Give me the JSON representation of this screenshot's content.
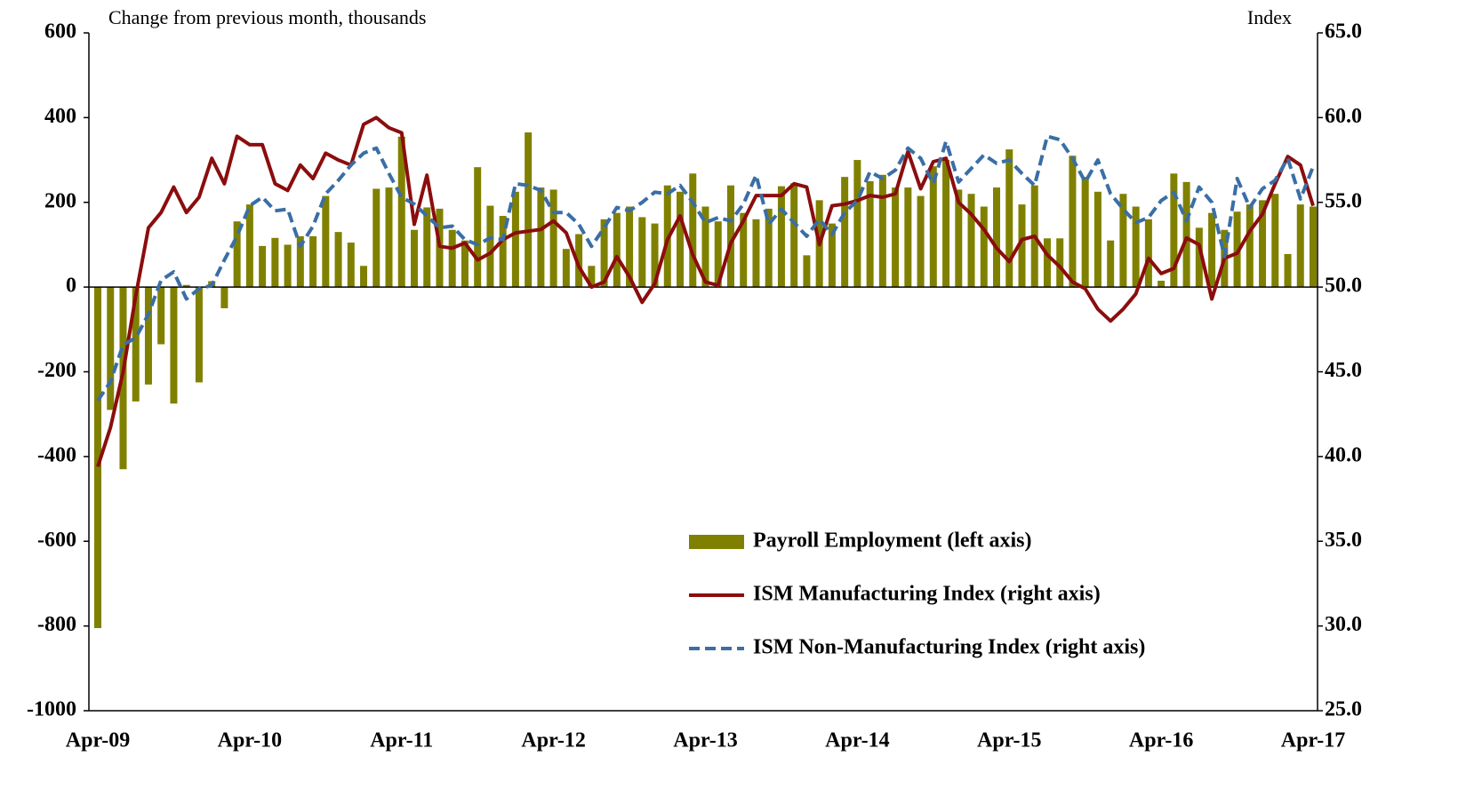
{
  "chart_data": {
    "type": "bar-line",
    "y_label": "Change from previous month, thousands",
    "y2_label": "Index",
    "categories": [
      "Apr-09",
      null,
      null,
      null,
      null,
      null,
      null,
      null,
      null,
      null,
      null,
      null,
      "Apr-10",
      null,
      null,
      null,
      null,
      null,
      null,
      null,
      null,
      null,
      null,
      null,
      "Apr-11",
      null,
      null,
      null,
      null,
      null,
      null,
      null,
      null,
      null,
      null,
      null,
      "Apr-12",
      null,
      null,
      null,
      null,
      null,
      null,
      null,
      null,
      null,
      null,
      null,
      "Apr-13",
      null,
      null,
      null,
      null,
      null,
      null,
      null,
      null,
      null,
      null,
      null,
      "Apr-14",
      null,
      null,
      null,
      null,
      null,
      null,
      null,
      null,
      null,
      null,
      null,
      "Apr-15",
      null,
      null,
      null,
      null,
      null,
      null,
      null,
      null,
      null,
      null,
      null,
      "Apr-16",
      null,
      null,
      null,
      null,
      null,
      null,
      null,
      null,
      null,
      null,
      null,
      "Apr-17"
    ],
    "series": [
      {
        "name": "Payroll Employment (left axis)",
        "kind": "bar",
        "color": "#808000",
        "values": [
          -805,
          -290,
          -430,
          -270,
          -230,
          -135,
          -275,
          5,
          -225,
          14,
          -50,
          155,
          195,
          97,
          116,
          100,
          120,
          120,
          215,
          130,
          105,
          50,
          232,
          235,
          355,
          135,
          188,
          185,
          135,
          110,
          283,
          192,
          168,
          225,
          365,
          235,
          230,
          90,
          125,
          50,
          160,
          175,
          190,
          165,
          150,
          240,
          225,
          268,
          190,
          155,
          240,
          175,
          160,
          185,
          238,
          245,
          75,
          205,
          150,
          260,
          300,
          250,
          265,
          235,
          235,
          215,
          285,
          300,
          230,
          220,
          190,
          235,
          325,
          195,
          240,
          115,
          115,
          310,
          260,
          225,
          110,
          220,
          190,
          160,
          15,
          268,
          248,
          140,
          175,
          135,
          178,
          195,
          205,
          220,
          78,
          195,
          190
        ]
      },
      {
        "name": "ISM Manufacturing Index (right axis)",
        "kind": "line",
        "axis": "y2",
        "color": "#8b0d0d",
        "dash": false,
        "values": [
          39.4,
          41.7,
          45.0,
          49.5,
          53.5,
          54.4,
          55.9,
          54.4,
          55.3,
          57.6,
          56.1,
          58.9,
          58.4,
          58.4,
          56.1,
          55.7,
          57.2,
          56.4,
          57.9,
          57.5,
          57.2,
          59.6,
          60.0,
          59.4,
          59.1,
          53.7,
          56.6,
          52.4,
          52.3,
          52.6,
          51.6,
          52.0,
          52.8,
          53.2,
          53.3,
          53.4,
          53.9,
          53.2,
          51.2,
          50.0,
          50.3,
          51.8,
          50.6,
          49.1,
          50.2,
          52.8,
          54.2,
          51.9,
          50.3,
          50.1,
          52.6,
          53.9,
          55.4,
          55.4,
          55.4,
          56.1,
          55.9,
          52.5,
          54.8,
          54.9,
          55.1,
          55.4,
          55.3,
          55.5,
          58.0,
          55.8,
          57.4,
          57.6,
          55.0,
          54.3,
          53.4,
          52.3,
          51.5,
          52.8,
          53.0,
          51.9,
          51.2,
          50.3,
          49.9,
          48.7,
          48.0,
          48.7,
          49.6,
          51.7,
          50.8,
          51.1,
          52.9,
          52.5,
          49.3,
          51.7,
          52.0,
          53.3,
          54.3,
          56.1,
          57.7,
          57.2,
          54.8
        ]
      },
      {
        "name": "ISM Non-Manufacturing Index (right axis)",
        "kind": "line",
        "axis": "y2",
        "color": "#3a6ea5",
        "dash": true,
        "values": [
          43.3,
          44.4,
          46.6,
          47.0,
          48.4,
          50.4,
          50.9,
          49.3,
          49.9,
          50.1,
          51.6,
          53.0,
          54.8,
          55.3,
          54.5,
          54.6,
          52.4,
          53.6,
          55.5,
          56.3,
          57.2,
          57.9,
          58.2,
          56.7,
          55.3,
          54.9,
          54.2,
          53.5,
          53.6,
          52.8,
          52.5,
          52.9,
          52.8,
          56.1,
          56.0,
          55.7,
          54.4,
          54.4,
          53.7,
          52.4,
          53.5,
          54.7,
          54.5,
          55.0,
          55.6,
          55.5,
          56.0,
          55.0,
          53.8,
          54.1,
          53.9,
          54.9,
          56.6,
          53.7,
          54.6,
          53.8,
          53.0,
          54.0,
          53.1,
          54.4,
          55.1,
          56.8,
          56.4,
          56.9,
          58.2,
          57.6,
          56.1,
          58.6,
          56.2,
          57.0,
          57.8,
          57.3,
          57.5,
          56.7,
          56.0,
          58.9,
          58.7,
          57.6,
          56.2,
          57.5,
          55.5,
          54.6,
          53.8,
          54.1,
          55.1,
          55.6,
          53.9,
          55.9,
          55.0,
          51.8,
          56.4,
          54.7,
          55.8,
          56.3,
          57.6,
          55.2,
          57.1
        ]
      }
    ],
    "ylim": [
      -1000,
      600
    ],
    "yticks": [
      -1000,
      -800,
      -600,
      -400,
      -200,
      0,
      200,
      400,
      600
    ],
    "y2lim": [
      25,
      65
    ],
    "y2ticks": [
      {
        "value": 25,
        "label": "25.0"
      },
      {
        "value": 30,
        "label": "30.0"
      },
      {
        "value": 35,
        "label": "35.0"
      },
      {
        "value": 40,
        "label": "40.0"
      },
      {
        "value": 45,
        "label": "45.0"
      },
      {
        "value": 50,
        "label": "50.0"
      },
      {
        "value": 55,
        "label": "55.0"
      },
      {
        "value": 60,
        "label": "60.0"
      },
      {
        "value": 65,
        "label": "65.0"
      }
    ],
    "grid": false,
    "legend": "lower-right"
  }
}
